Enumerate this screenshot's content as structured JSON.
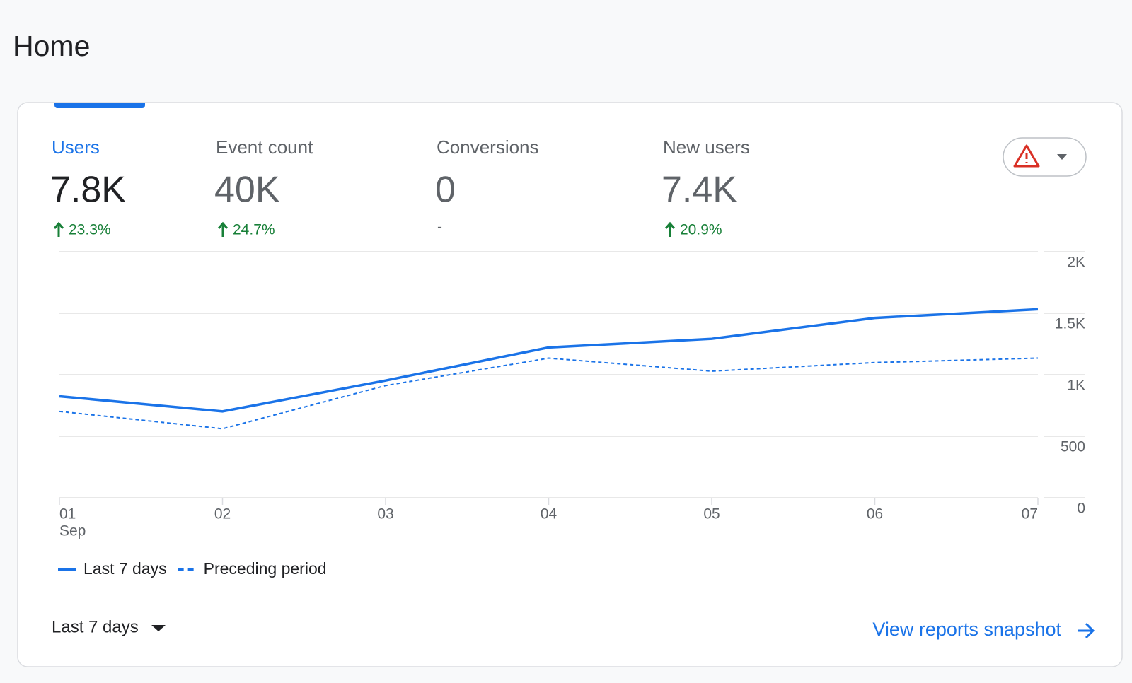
{
  "header": {
    "title": "Home"
  },
  "metrics": [
    {
      "label": "Users",
      "value": "7.8K",
      "change": "23.3%",
      "trend": "up"
    },
    {
      "label": "Event count",
      "value": "40K",
      "change": "24.7%",
      "trend": "up"
    },
    {
      "label": "Conversions",
      "value": "0",
      "change": "-"
    },
    {
      "label": "New users",
      "value": "7.4K",
      "change": "20.9%",
      "trend": "up"
    }
  ],
  "chart_data": {
    "type": "line",
    "categories": [
      "01",
      "02",
      "03",
      "04",
      "05",
      "06",
      "07"
    ],
    "x_month_label": "Sep",
    "series": [
      {
        "name": "Last 7 days",
        "color": "#1a73e8",
        "dash": false,
        "values": [
          825,
          702,
          953,
          1222,
          1292,
          1462,
          1532
        ]
      },
      {
        "name": "Preceding period",
        "color": "#1a73e8",
        "dash": true,
        "values": [
          702,
          561,
          912,
          1135,
          1029,
          1099,
          1135
        ]
      }
    ],
    "ylim": [
      0,
      2000
    ],
    "yticks": [
      0,
      500,
      {
        "value": 1000,
        "label": "1K"
      },
      {
        "value": 1500,
        "label": "1.5K"
      },
      {
        "value": 2000,
        "label": "2K"
      }
    ],
    "grid": true
  },
  "footer": {
    "date_range": "Last 7 days",
    "link": "View reports snapshot"
  }
}
